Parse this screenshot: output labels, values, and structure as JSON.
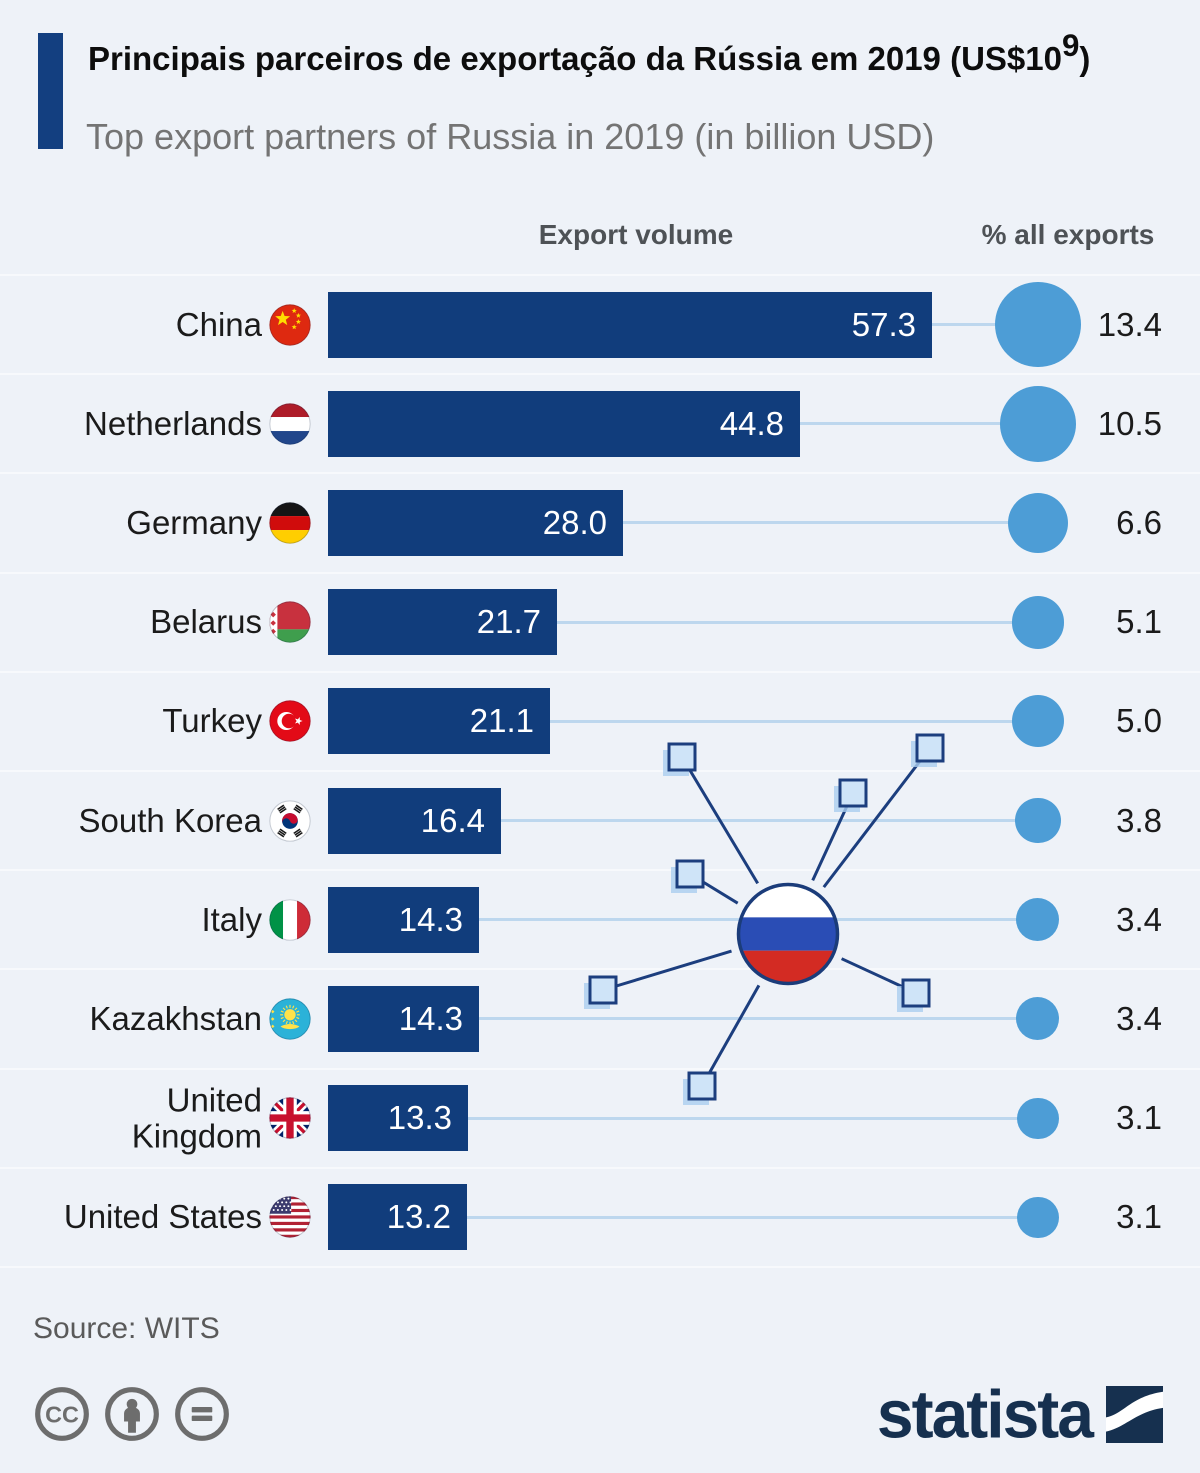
{
  "header": {
    "title_prefix": "Principais parceiros de exportação da Rússia em 2019 (US$10",
    "title_sup": "9",
    "title_suffix": ")",
    "subtitle": "Top export partners of Russia in 2019 (in billion USD)"
  },
  "columns": {
    "volume_label": "Export volume",
    "share_label": "% all exports"
  },
  "chart_data": {
    "type": "bar",
    "title": "Principais parceiros de exportação da Rússia em 2019 (US$10⁹)",
    "subtitle": "Top export partners of Russia in 2019 (in billion USD)",
    "unit": "billion USD",
    "orientation": "horizontal",
    "categories": [
      "China",
      "Netherlands",
      "Germany",
      "Belarus",
      "Turkey",
      "South Korea",
      "Italy",
      "Kazakhstan",
      "United Kingdom",
      "United States"
    ],
    "display_categories": [
      "China",
      "Netherlands",
      "Germany",
      "Belarus",
      "Turkey",
      "South Korea",
      "Italy",
      "Kazakhstan",
      "United\nKingdom",
      "United States"
    ],
    "series": [
      {
        "name": "Export volume",
        "values": [
          57.3,
          44.8,
          28.0,
          21.7,
          21.1,
          16.4,
          14.3,
          14.3,
          13.3,
          13.2
        ]
      },
      {
        "name": "% all exports",
        "values": [
          13.4,
          10.5,
          6.6,
          5.1,
          5.0,
          3.8,
          3.4,
          3.4,
          3.1,
          3.1
        ]
      }
    ],
    "xlim": [
      0,
      57.3
    ],
    "grid": "off",
    "legend": "none",
    "flags": [
      "china",
      "netherlands",
      "germany",
      "belarus",
      "turkey",
      "south-korea",
      "italy",
      "kazakhstan",
      "united-kingdom",
      "united-states"
    ],
    "center_icon": "russia-flag"
  },
  "footer": {
    "source": "Source: WITS",
    "brand": "statista",
    "license_icons": [
      "cc-icon",
      "attribution-icon",
      "equal-icon"
    ]
  },
  "colors": {
    "background": "#eef2f8",
    "bar": "#113d7c",
    "bubble": "#4d9dd6",
    "connector": "#bdd7ee",
    "accent": "#133f80",
    "network_line": "#1c3e7e",
    "square_fill": "#cfe4f8",
    "square_shadow": "#aacdef",
    "russia_blue": "#2a4db5",
    "russia_red": "#d32b23"
  }
}
